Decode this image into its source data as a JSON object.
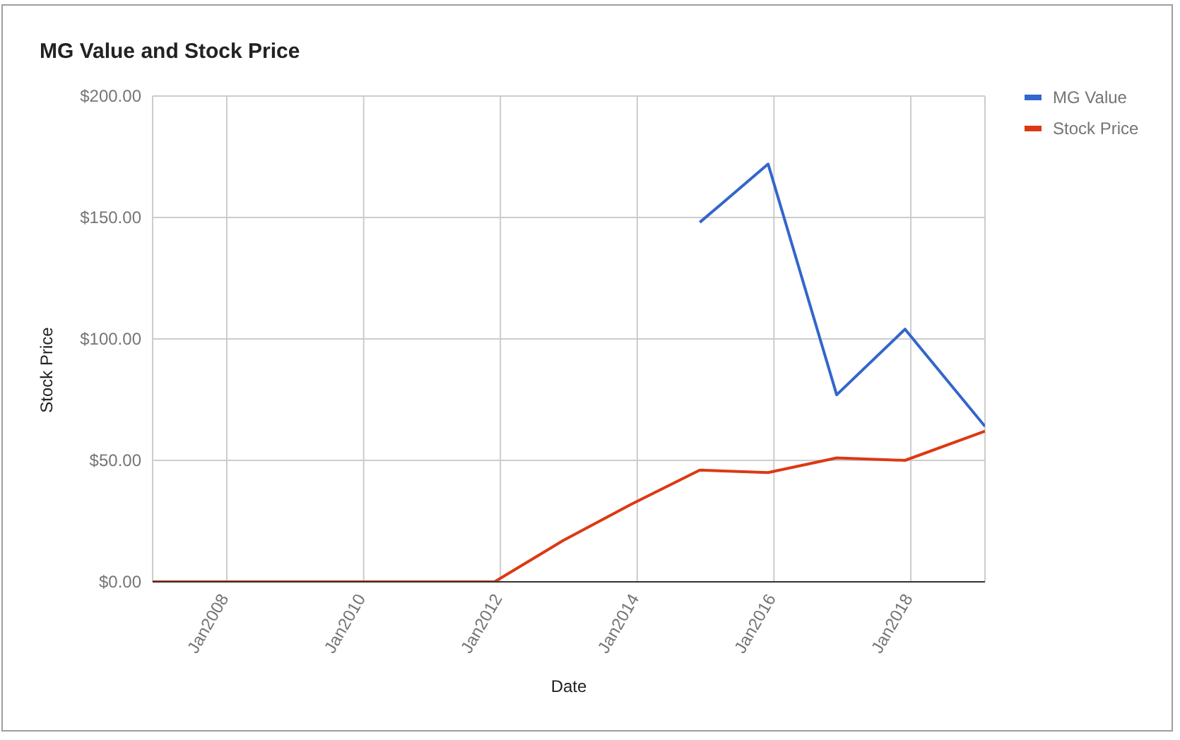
{
  "chart_data": {
    "type": "line",
    "title": "MG Value and Stock Price",
    "xlabel": "Date",
    "ylabel": "Stock Price",
    "x": [
      "2006-12",
      "2007-12",
      "2008-12",
      "2009-12",
      "2010-12",
      "2011-12",
      "2012-12",
      "2013-12",
      "2014-12",
      "2015-12",
      "2016-12",
      "2017-12",
      "2019-02"
    ],
    "series": [
      {
        "name": "MG Value",
        "color": "#3366cc",
        "values": [
          null,
          null,
          null,
          null,
          null,
          null,
          null,
          null,
          148,
          172,
          77,
          104,
          64
        ]
      },
      {
        "name": "Stock Price",
        "color": "#dc3912",
        "values": [
          0,
          0,
          0,
          0,
          0,
          0,
          17,
          32,
          46,
          45,
          51,
          50,
          62
        ]
      }
    ],
    "xlim": [
      "2006-12",
      "2019-02"
    ],
    "xticks": [
      {
        "value": "2008-01",
        "label": "Jan2008"
      },
      {
        "value": "2010-01",
        "label": "Jan2010"
      },
      {
        "value": "2012-01",
        "label": "Jan2012"
      },
      {
        "value": "2014-01",
        "label": "Jan2014"
      },
      {
        "value": "2016-01",
        "label": "Jan2016"
      },
      {
        "value": "2018-01",
        "label": "Jan2018"
      }
    ],
    "ylim": [
      0,
      200
    ],
    "yticks": [
      {
        "value": 0,
        "label": "$0.00"
      },
      {
        "value": 50,
        "label": "$50.00"
      },
      {
        "value": 100,
        "label": "$100.00"
      },
      {
        "value": 150,
        "label": "$150.00"
      },
      {
        "value": 200,
        "label": "$200.00"
      }
    ],
    "grid": true,
    "legend": "top right",
    "marker": "none",
    "line_style": "solid"
  }
}
